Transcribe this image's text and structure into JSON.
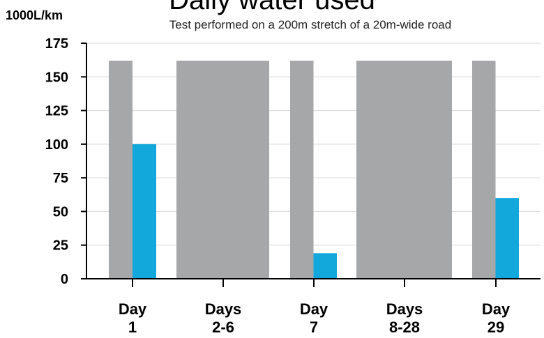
{
  "chart_data": {
    "type": "bar",
    "title": "Daily water used",
    "subtitle": "Test performed on a 200m stretch of a 20m-wide road",
    "ylabel": "1000L/km",
    "ylim": [
      0,
      175
    ],
    "yticks": [
      0,
      25,
      50,
      75,
      100,
      125,
      150,
      175
    ],
    "grid": true,
    "categories": [
      {
        "line1": "Day",
        "line2": "1"
      },
      {
        "line1": "Days",
        "line2": "2-6"
      },
      {
        "line1": "Day",
        "line2": "7"
      },
      {
        "line1": "Days",
        "line2": "8-28"
      },
      {
        "line1": "Day",
        "line2": "29"
      }
    ],
    "series": [
      {
        "color": "#a6a7a9",
        "values": [
          162,
          162,
          162,
          162,
          162
        ]
      },
      {
        "color": "#12a8dc",
        "values": [
          100,
          null,
          19,
          null,
          60
        ]
      }
    ]
  }
}
